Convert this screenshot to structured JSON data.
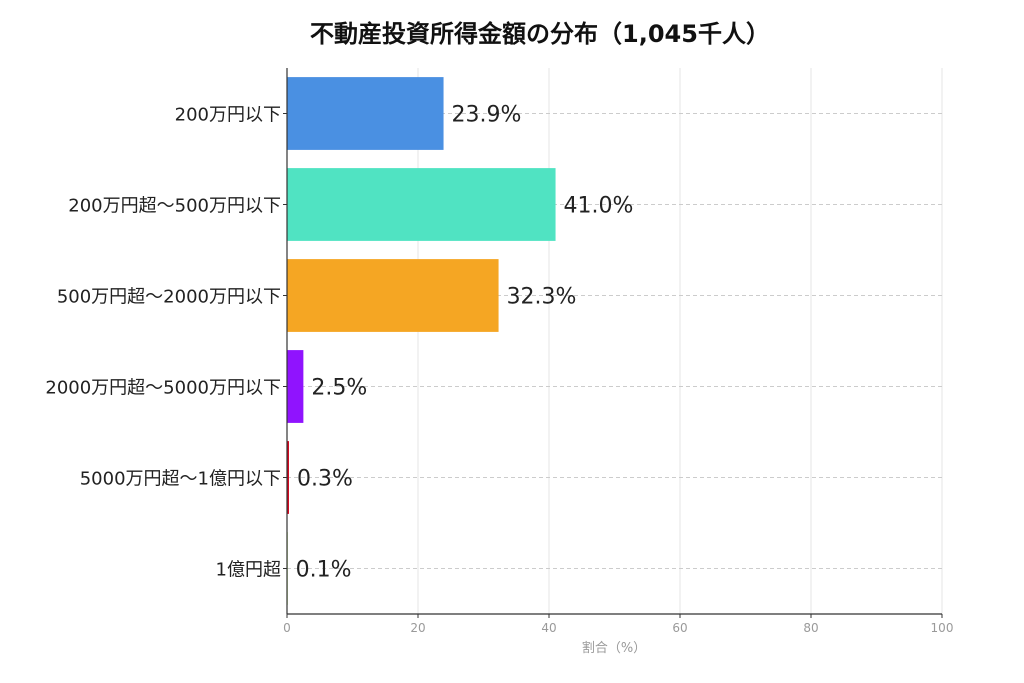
{
  "chart_data": {
    "type": "bar",
    "orientation": "horizontal",
    "title": "不動産投資所得金額の分布（1,045千人）",
    "xlabel": "割合（%）",
    "ylabel": "",
    "xlim": [
      0,
      100
    ],
    "xticks": [
      0,
      20,
      40,
      60,
      80,
      100
    ],
    "grid": true,
    "categories": [
      "200万円以下",
      "200万円超～500万円以下",
      "500万円超～2000万円以下",
      "2000万円超～5000万円以下",
      "5000万円超～1億円以下",
      "1億円超"
    ],
    "values": [
      23.9,
      41.0,
      32.3,
      2.5,
      0.3,
      0.1
    ],
    "value_labels": [
      "23.9%",
      "41.0%",
      "32.3%",
      "2.5%",
      "0.3%",
      "0.1%"
    ],
    "colors": [
      "#4a90e2",
      "#50e3c2",
      "#f5a623",
      "#9013fe",
      "#d0021b",
      "#7ed321"
    ]
  }
}
